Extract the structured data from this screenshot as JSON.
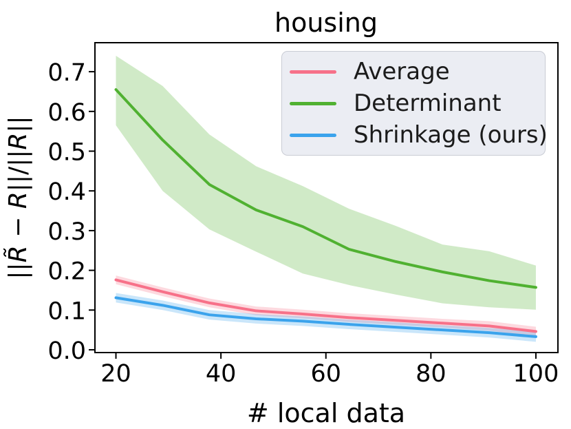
{
  "figure": {
    "background": "#ffffff",
    "text_color": "#000000"
  },
  "chart_data": {
    "type": "line",
    "title": "housing",
    "xlabel": "# local data",
    "ylabel": "||R̃ − R||/||R||",
    "ylabel_parts": [
      {
        "text": "||",
        "italic": false
      },
      {
        "text": "R̃",
        "italic": true
      },
      {
        "text": " − ",
        "italic": false
      },
      {
        "text": "R",
        "italic": true
      },
      {
        "text": "||/||",
        "italic": false
      },
      {
        "text": "R",
        "italic": true
      },
      {
        "text": "||",
        "italic": false
      }
    ],
    "x": [
      20,
      28.9,
      37.8,
      46.7,
      55.6,
      64.4,
      73.3,
      82.2,
      91.1,
      100
    ],
    "x_ticks": [
      20,
      40,
      60,
      80,
      100
    ],
    "y_ticks": [
      0.0,
      0.1,
      0.2,
      0.3,
      0.4,
      0.5,
      0.6,
      0.7
    ],
    "xlim": [
      16,
      104.2
    ],
    "ylim": [
      -0.007,
      0.773
    ],
    "grid": false,
    "legend_position": "upper right",
    "band_opacity": 0.27,
    "series": [
      {
        "name": "Average",
        "color": "#f77189",
        "values": [
          0.176,
          0.146,
          0.118,
          0.098,
          0.09,
          0.081,
          0.074,
          0.067,
          0.06,
          0.046
        ],
        "band_low": [
          0.165,
          0.135,
          0.107,
          0.087,
          0.079,
          0.07,
          0.063,
          0.056,
          0.048,
          0.034
        ],
        "band_high": [
          0.187,
          0.157,
          0.129,
          0.109,
          0.101,
          0.092,
          0.085,
          0.078,
          0.072,
          0.058
        ]
      },
      {
        "name": "Determinant",
        "color": "#50b131",
        "values": [
          0.655,
          0.528,
          0.416,
          0.352,
          0.31,
          0.253,
          0.222,
          0.196,
          0.174,
          0.157
        ],
        "band_low": [
          0.565,
          0.4,
          0.303,
          0.247,
          0.192,
          0.163,
          0.139,
          0.117,
          0.107,
          0.101
        ],
        "band_high": [
          0.74,
          0.664,
          0.542,
          0.462,
          0.412,
          0.355,
          0.312,
          0.265,
          0.248,
          0.212
        ]
      },
      {
        "name": "Shrinkage (ours)",
        "color": "#3ba3ec",
        "values": [
          0.131,
          0.112,
          0.088,
          0.078,
          0.072,
          0.064,
          0.057,
          0.05,
          0.043,
          0.033
        ],
        "band_low": [
          0.119,
          0.1,
          0.076,
          0.066,
          0.06,
          0.052,
          0.045,
          0.038,
          0.031,
          0.02
        ],
        "band_high": [
          0.143,
          0.124,
          0.1,
          0.09,
          0.084,
          0.076,
          0.069,
          0.062,
          0.055,
          0.046
        ]
      }
    ]
  },
  "legend": {
    "items": [
      {
        "label": "Average"
      },
      {
        "label": "Determinant"
      },
      {
        "label": "Shrinkage (ours)"
      }
    ]
  }
}
